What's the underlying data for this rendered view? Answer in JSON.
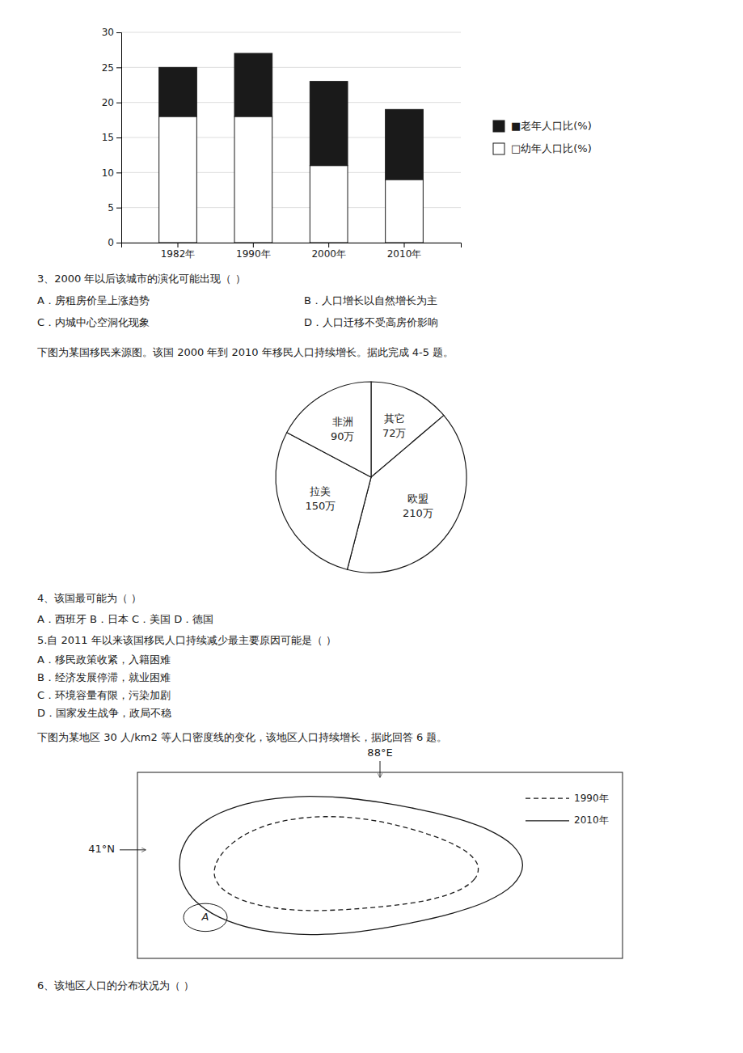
{
  "chart_data": [
    {
      "type": "bar",
      "categories": [
        "1982年",
        "1990年",
        "2000年",
        "2010年"
      ],
      "series": [
        {
          "name": "□幼年人口比(%)",
          "color": "#ffffff",
          "values": [
            18,
            18,
            11,
            9
          ]
        },
        {
          "name": "■老年人口比(%)",
          "color": "#1a1a1a",
          "values": [
            7,
            9,
            12,
            10
          ]
        }
      ],
      "stacked": true,
      "ylim": [
        0,
        30
      ],
      "yticks": [
        0,
        5,
        10,
        15,
        20,
        25,
        30
      ],
      "grid": true,
      "legend": "right",
      "annotations": [
        "3、2000 年以后该城市的演化可能出现（    ）",
        "A．房租房价呈上涨趋势",
        "B．人口增长以自然增长为主",
        "C．内城中心空洞化现象",
        "D．人口迁移不受高房价影响",
        "下图为某国移民来源图。该国 2000 年到 2010 年移民人口持续增长。据此完成 4-5 题。"
      ]
    },
    {
      "type": "pie",
      "categories": [
        "其它",
        "欧盟",
        "拉美",
        "非洲"
      ],
      "values": [
        72,
        210,
        150,
        90
      ],
      "value_labels": [
        "72万",
        "210万",
        "150万",
        "90万"
      ],
      "colors": [
        "#ffffff",
        "#ffffff",
        "#ffffff",
        "#ffffff"
      ],
      "data_labels": true,
      "annotations": [
        "4、该国最可能为（    ）",
        "A．西班牙      B．日本    C．美国    D．德国",
        "5.自 2011 年以来该国移民人口持续减少最主要原因可能是（    ）",
        "A．移民政策收紧，入籍困难",
        "B．经济发展停滞，就业困难",
        "C．环境容量有限，污染加剧",
        "D．国家发生战争，政局不稳"
      ]
    },
    {
      "type": "diagram",
      "title": "下图为某地区 30 人/km2 等人口密度线的变化，该地区人口持续增长，据此回答 6 题。",
      "series": [
        {
          "name": "1990年",
          "line_style": "dashed"
        },
        {
          "name": "2010年",
          "line_style": "solid"
        }
      ],
      "annotations": [
        "88°E",
        "41°N",
        "A",
        "6、该地区人口的分布状况为（    ）"
      ]
    }
  ]
}
